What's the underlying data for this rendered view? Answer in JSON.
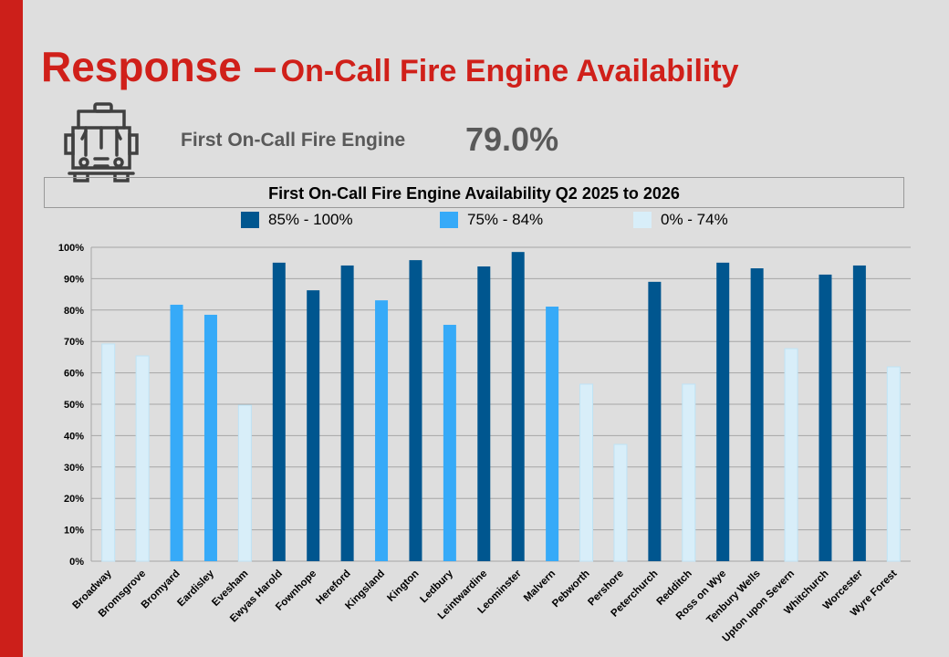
{
  "header": {
    "title_main": "Response –",
    "title_sub": "On-Call Fire Engine Availability"
  },
  "kpi": {
    "label": "First On-Call Fire Engine",
    "value": "79.0%",
    "icon": "fire-engine-icon"
  },
  "colors": {
    "high": "#00568f",
    "mid": "#36aaf8",
    "low": "#d8eef9",
    "accent": "#cc1f1a"
  },
  "chart_data": {
    "type": "bar",
    "title": "First On-Call Fire Engine Availability Q2 2025 to 2026",
    "legend": [
      {
        "label": "85% - 100%",
        "band": "high"
      },
      {
        "label": "75% - 84%",
        "band": "mid"
      },
      {
        "label": "0% - 74%",
        "band": "low"
      }
    ],
    "legend_position": "top",
    "ylim": [
      0,
      100
    ],
    "yticks": [
      "0%",
      "10%",
      "20%",
      "30%",
      "40%",
      "50%",
      "60%",
      "70%",
      "80%",
      "90%",
      "100%"
    ],
    "grid": true,
    "categories": [
      "Broadway",
      "Bromsgrove",
      "Bromyard",
      "Eardisley",
      "Evesham",
      "Ewyas Harold",
      "Fownhope",
      "Hereford",
      "Kingsland",
      "Kington",
      "Ledbury",
      "Leintwardine",
      "Leominster",
      "Malvern",
      "Pebworth",
      "Pershore",
      "Peterchurch",
      "Redditch",
      "Ross on Wye",
      "Tenbury Wells",
      "Upton upon Severn",
      "Whitchurch",
      "Worcester",
      "Wyre Forest"
    ],
    "values": [
      69.2,
      65.4,
      81.7,
      78.5,
      49.7,
      95.1,
      86.3,
      94.2,
      83.1,
      95.9,
      75.3,
      93.9,
      98.5,
      81.1,
      56.4,
      37.2,
      89.0,
      56.4,
      95.1,
      93.3,
      67.7,
      91.3,
      94.2,
      61.9
    ]
  }
}
